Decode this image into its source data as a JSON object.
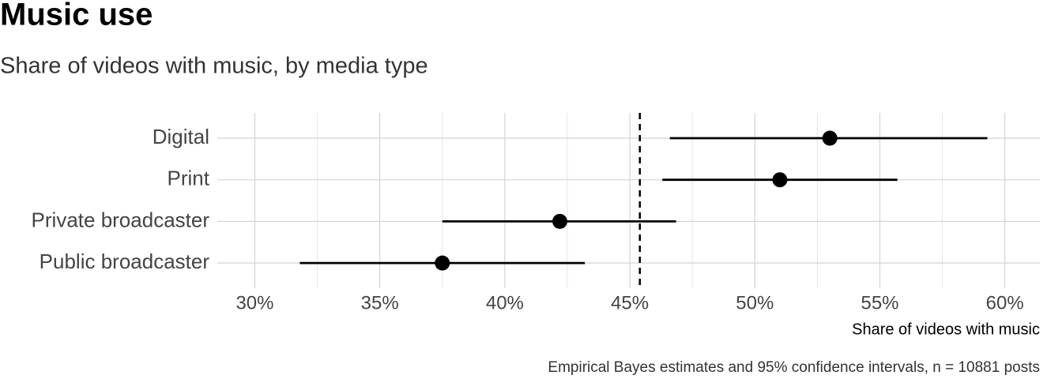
{
  "chart_data": {
    "type": "dot-errorbar",
    "title": "Music use",
    "subtitle": "Share of videos with music, by media type",
    "x_label": "Share of videos with music",
    "caption": "Empirical Bayes estimates and 95% confidence intervals, n = 10881 posts",
    "categories": [
      "Digital",
      "Print",
      "Private broadcaster",
      "Public broadcaster"
    ],
    "values": [
      53.0,
      51.0,
      42.2,
      37.5
    ],
    "lower": [
      46.6,
      46.3,
      37.5,
      31.8
    ],
    "upper": [
      59.3,
      55.7,
      46.85,
      43.2
    ],
    "color": "#000000",
    "reference_line": 45.4,
    "xlim": [
      28.5,
      61.4
    ],
    "xticks": [
      {
        "value": 30,
        "label": "30%"
      },
      {
        "value": 35,
        "label": "35%"
      },
      {
        "value": 40,
        "label": "40%"
      },
      {
        "value": 45,
        "label": "45%"
      },
      {
        "value": 50,
        "label": "50%"
      },
      {
        "value": 55,
        "label": "55%"
      },
      {
        "value": 60,
        "label": "60%"
      }
    ],
    "x_minor_ticks": [
      32.5,
      37.5,
      42.5,
      47.5,
      52.5,
      57.5
    ],
    "grid": true
  }
}
